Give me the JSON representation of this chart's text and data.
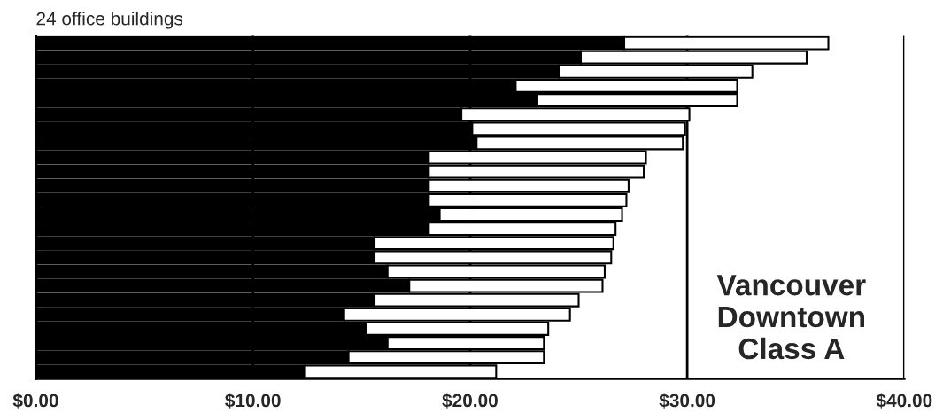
{
  "chart_data": {
    "type": "bar",
    "orientation": "horizontal",
    "stacked": true,
    "title": "24 office buildings",
    "categories": [
      null,
      null,
      null,
      null,
      null,
      null,
      null,
      null,
      null,
      null,
      null,
      null,
      null,
      null,
      null,
      null,
      null,
      null,
      null,
      null,
      null,
      null,
      null,
      null
    ],
    "series": [
      {
        "color": "#000000",
        "values": [
          27.1,
          25.1,
          24.1,
          22.1,
          23.1,
          19.6,
          20.1,
          20.3,
          18.1,
          18.1,
          18.1,
          18.1,
          18.6,
          18.1,
          15.6,
          15.6,
          16.2,
          17.2,
          15.6,
          14.2,
          15.2,
          16.2,
          14.4,
          12.4
        ]
      },
      {
        "color": "#ffffff",
        "values": [
          9.4,
          10.4,
          8.9,
          10.2,
          9.2,
          10.5,
          9.8,
          9.5,
          10.0,
          9.9,
          9.2,
          9.1,
          8.4,
          8.6,
          11.0,
          10.9,
          10.0,
          8.9,
          9.4,
          10.4,
          8.4,
          7.2,
          9.0,
          8.8
        ]
      }
    ],
    "xlim": [
      0,
      40
    ],
    "xticks": [
      {
        "value": 0,
        "label": "$0.00"
      },
      {
        "value": 10,
        "label": "$10.00"
      },
      {
        "value": 20,
        "label": "$20.00"
      },
      {
        "value": 30,
        "label": "$30.00"
      },
      {
        "value": 40,
        "label": "$40.00"
      }
    ],
    "grid": "x",
    "tick_labels": "x",
    "annotations": [
      "Vancouver\nDowntown\nClass A"
    ]
  }
}
